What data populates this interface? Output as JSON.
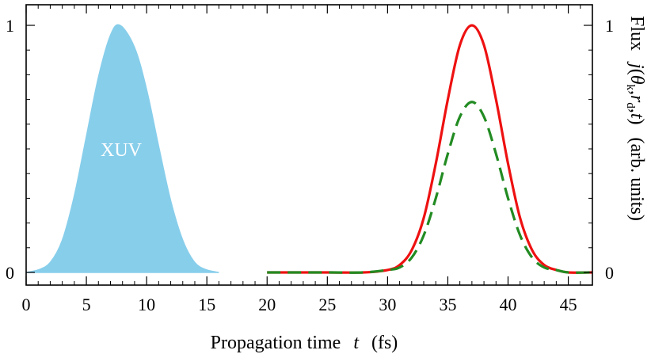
{
  "chart_data": {
    "type": "line",
    "xlabel": {
      "prefix": "Propagation time",
      "symbol": "t",
      "unit": "(fs)"
    },
    "ylabel_right": {
      "flux": "Flux",
      "j": "j",
      "open": "(",
      "theta": "θ",
      "k_sub": "k",
      "comma1": ",",
      "r": "r",
      "d_sub": "d",
      "comma2": ",",
      "t": "t",
      "close": ")",
      "units": "(arb. units)"
    },
    "xlim": [
      0,
      47
    ],
    "ylim": [
      0,
      1
    ],
    "x_ticks": [
      0,
      5,
      10,
      15,
      20,
      25,
      30,
      35,
      40,
      45
    ],
    "y_ticks_left": [
      0,
      1
    ],
    "y_ticks_right": [
      0,
      1
    ],
    "grid": false,
    "annotation": "XUV",
    "series": [
      {
        "kind": "filled-area",
        "color": "#87CEEB",
        "x": [
          0,
          1,
          2,
          3,
          4,
          5,
          6,
          7,
          7.8,
          9,
          10,
          11,
          12,
          13,
          14,
          15,
          16
        ],
        "y": [
          0.0,
          0.01,
          0.04,
          0.13,
          0.31,
          0.55,
          0.79,
          0.96,
          1.0,
          0.91,
          0.74,
          0.51,
          0.29,
          0.13,
          0.04,
          0.01,
          0.0
        ]
      },
      {
        "kind": "solid-line",
        "color": "#ee1111",
        "x": [
          20,
          25,
          28,
          30,
          31,
          32,
          33,
          34,
          35,
          36,
          37,
          38,
          39,
          40,
          41,
          42,
          43,
          44,
          45,
          47
        ],
        "y": [
          0.0,
          0.0,
          0.0,
          0.01,
          0.03,
          0.09,
          0.22,
          0.44,
          0.7,
          0.92,
          1.0,
          0.92,
          0.7,
          0.44,
          0.22,
          0.09,
          0.03,
          0.01,
          0.0,
          0.0
        ]
      },
      {
        "kind": "dashed-line",
        "color": "#228B22",
        "x": [
          20,
          25,
          28,
          30,
          31,
          32,
          33,
          34,
          35,
          36,
          37,
          38,
          39,
          40,
          41,
          42,
          43,
          44,
          45,
          47
        ],
        "y": [
          0.0,
          0.0,
          0.0,
          0.01,
          0.02,
          0.06,
          0.15,
          0.3,
          0.48,
          0.63,
          0.69,
          0.63,
          0.48,
          0.3,
          0.15,
          0.06,
          0.02,
          0.01,
          0.0,
          0.0
        ]
      }
    ]
  }
}
